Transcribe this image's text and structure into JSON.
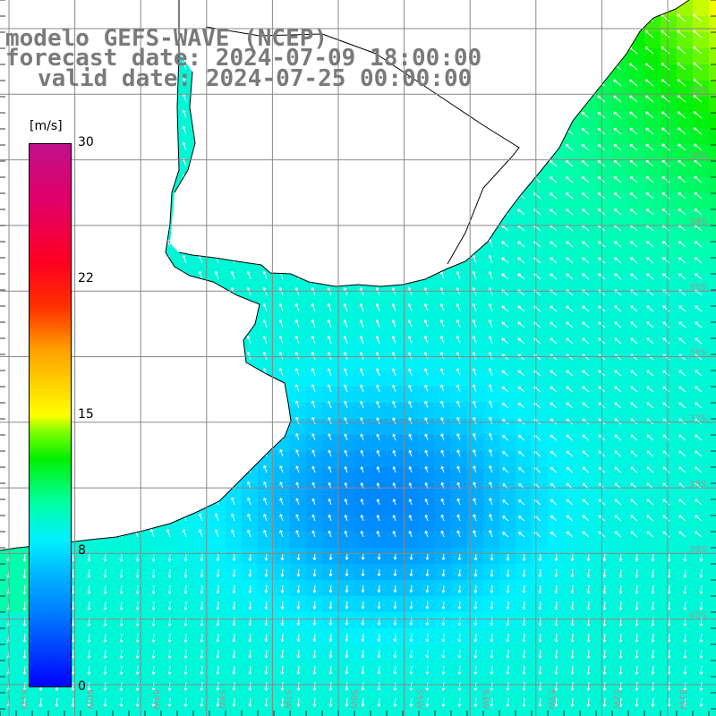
{
  "title": {
    "line1": "modelo GEFS-WAVE (NCEP)",
    "line2": "forecast date: 2024-07-09 18:00:00",
    "line3": "valid date: 2024-07-25 00:00:00"
  },
  "colorbar": {
    "unit": "[m/s]",
    "ticks": [
      "30",
      "22",
      "15",
      "8",
      "0"
    ],
    "tick_values": [
      30,
      22,
      15,
      8,
      0
    ],
    "min": 0,
    "max": 30
  },
  "grid": {
    "lon_labels": [
      "61W",
      "60W",
      "59W",
      "58W",
      "57W",
      "56W",
      "55W",
      "54W",
      "53W",
      "52W",
      "51W"
    ],
    "lat_labels": [
      "32S",
      "33S",
      "34S",
      "35S",
      "36S",
      "37S",
      "38S",
      "39S",
      "40S"
    ]
  },
  "colors": {
    "land": "#ffffff",
    "grid": "#888888",
    "coast": "#000000",
    "arrows": "#ffffff",
    "title": "#7a7a7a"
  },
  "legend_position": "left",
  "field_description_colors": [
    "#0000ff",
    "#0070ff",
    "#00b0ff",
    "#00f0ff",
    "#00ffa0",
    "#00f000"
  ]
}
